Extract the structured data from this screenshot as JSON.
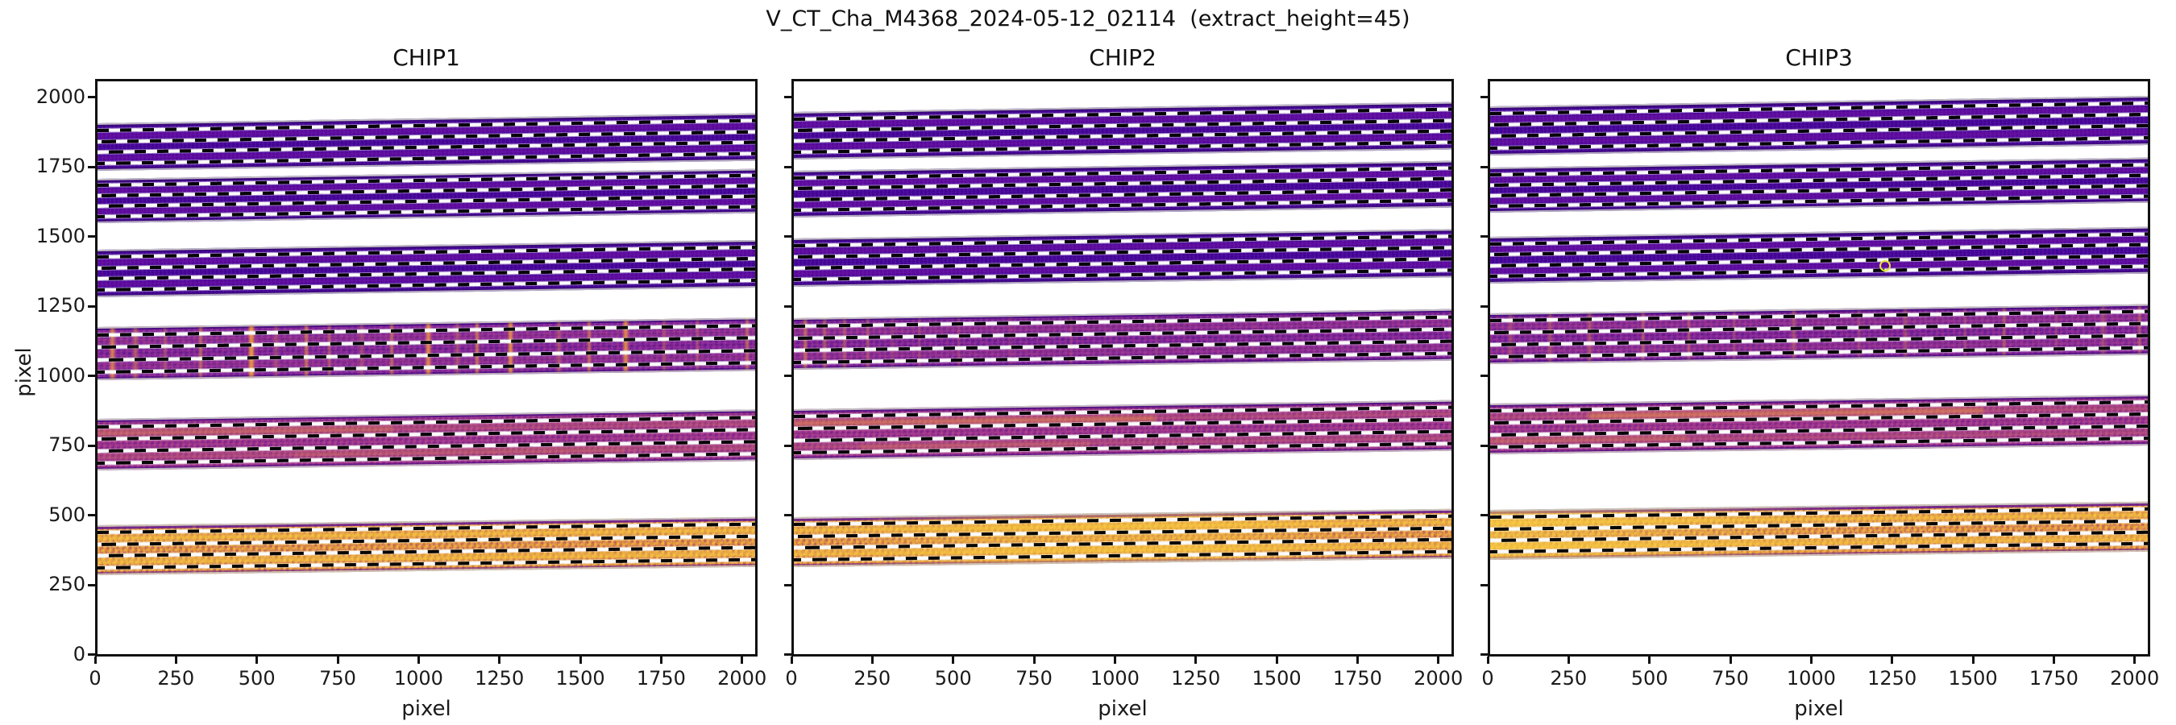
{
  "figure": {
    "suptitle": "V_CT_Cha_M4368_2024-05-12_02114  (extract_height=45)",
    "extract_height": 45
  },
  "axes": {
    "xlabel": "pixel",
    "ylabel": "pixel",
    "x_ticks": [
      0,
      250,
      500,
      750,
      1000,
      1250,
      1500,
      1750,
      2000
    ],
    "y_ticks": [
      0,
      250,
      500,
      750,
      1000,
      1250,
      1500,
      1750,
      2000
    ],
    "xlim": [
      0,
      2048
    ],
    "ylim": [
      -7,
      2065
    ]
  },
  "colors": {
    "dark_base": "#43069e",
    "mid_base": "#74219d",
    "magenta_base": "#902d93",
    "orange_base": "#dd8634",
    "orange_bright": "#f9c62f",
    "streak_orange": "#fca636",
    "dash_black": "#060606",
    "dash_white": "#fafafa",
    "marker_yellow": "#e8e337",
    "spine": "#111111",
    "edge_gray": "#c6c6c6"
  },
  "chart_data": [
    {
      "type": "heatmap",
      "title": "CHIP1",
      "xlabel": "pixel",
      "ylabel": "pixel",
      "xlim": [
        0,
        2048
      ],
      "x_ticks": [
        0,
        250,
        500,
        750,
        1000,
        1250,
        1500,
        1750,
        2000
      ],
      "y_ticks": [
        0,
        250,
        500,
        750,
        1000,
        1250,
        1500,
        1750,
        2000
      ],
      "orders": [
        {
          "y_bottom_left": 1745,
          "band_height": 170,
          "rise": 36,
          "palette": "dark",
          "highlight": "none",
          "vstreaks": [],
          "hstreaks": []
        },
        {
          "y_bottom_left": 1555,
          "band_height": 160,
          "rise": 36,
          "palette": "dark",
          "highlight": "none",
          "vstreaks": [],
          "hstreaks": []
        },
        {
          "y_bottom_left": 1292,
          "band_height": 170,
          "rise": 35,
          "palette": "dark",
          "highlight": "none",
          "vstreaks": [],
          "hstreaks": []
        },
        {
          "y_bottom_left": 995,
          "band_height": 190,
          "rise": 34,
          "palette": "mid",
          "highlight": "none",
          "vstreaks": [
            [
              0.02,
              5,
              0.7
            ],
            [
              0.055,
              4,
              0.5
            ],
            [
              0.1,
              3,
              0.4
            ],
            [
              0.155,
              4,
              0.5
            ],
            [
              0.23,
              6,
              0.85
            ],
            [
              0.27,
              3,
              0.4
            ],
            [
              0.315,
              4,
              0.6
            ],
            [
              0.35,
              3,
              0.45
            ],
            [
              0.4,
              3,
              0.4
            ],
            [
              0.445,
              4,
              0.5
            ],
            [
              0.5,
              5,
              0.8
            ],
            [
              0.545,
              3,
              0.45
            ],
            [
              0.575,
              4,
              0.6
            ],
            [
              0.625,
              5,
              0.8
            ],
            [
              0.7,
              3,
              0.5
            ],
            [
              0.745,
              4,
              0.55
            ],
            [
              0.8,
              5,
              0.8
            ],
            [
              0.86,
              3,
              0.4
            ],
            [
              0.91,
              3,
              0.35
            ],
            [
              0.985,
              4,
              0.5
            ]
          ],
          "hstreaks": []
        },
        {
          "y_bottom_left": 668,
          "band_height": 185,
          "rise": 34,
          "palette": "magenta",
          "highlight": "none",
          "vstreaks": [],
          "hstreaks": [
            [
              0.0,
              0.45,
              0.2,
              0.3
            ],
            [
              0.3,
              0.5,
              0.7,
              0.18
            ]
          ]
        },
        {
          "y_bottom_left": 293,
          "band_height": 180,
          "rise": 30,
          "palette": "orange",
          "highlight": "none",
          "vstreaks": [
            [
              0.145,
              3,
              0.35
            ],
            [
              0.46,
              3,
              0.3
            ],
            [
              0.93,
              3,
              0.28
            ]
          ],
          "hstreaks": []
        }
      ],
      "markers": []
    },
    {
      "type": "heatmap",
      "title": "CHIP2",
      "xlabel": "pixel",
      "ylabel": "pixel",
      "xlim": [
        0,
        2048
      ],
      "x_ticks": [
        0,
        250,
        500,
        750,
        1000,
        1250,
        1500,
        1750,
        2000
      ],
      "y_ticks": [
        0,
        250,
        500,
        750,
        1000,
        1250,
        1500,
        1750,
        2000
      ],
      "orders": [
        {
          "y_bottom_left": 1785,
          "band_height": 170,
          "rise": 36,
          "palette": "dark",
          "highlight": "none",
          "vstreaks": [],
          "hstreaks": []
        },
        {
          "y_bottom_left": 1575,
          "band_height": 168,
          "rise": 36,
          "palette": "dark",
          "highlight": "none",
          "vstreaks": [],
          "hstreaks": []
        },
        {
          "y_bottom_left": 1330,
          "band_height": 172,
          "rise": 34,
          "palette": "dark",
          "highlight": "none",
          "vstreaks": [],
          "hstreaks": []
        },
        {
          "y_bottom_left": 1030,
          "band_height": 185,
          "rise": 33,
          "palette": "mid",
          "highlight": "none",
          "vstreaks": [
            [
              0.015,
              4,
              0.55
            ],
            [
              0.045,
              3,
              0.5
            ],
            [
              0.075,
              3,
              0.45
            ],
            [
              0.11,
              3,
              0.4
            ],
            [
              0.15,
              2,
              0.3
            ],
            [
              0.19,
              2,
              0.3
            ],
            [
              0.25,
              2,
              0.25
            ],
            [
              0.33,
              2,
              0.2
            ],
            [
              0.42,
              2,
              0.2
            ],
            [
              0.55,
              2,
              0.15
            ],
            [
              0.7,
              2,
              0.15
            ]
          ],
          "hstreaks": []
        },
        {
          "y_bottom_left": 705,
          "band_height": 183,
          "rise": 33,
          "palette": "magenta",
          "highlight": "none",
          "vstreaks": [],
          "hstreaks": [
            [
              0.0,
              0.55,
              0.2,
              0.45
            ],
            [
              0.1,
              0.35,
              0.72,
              0.22
            ]
          ]
        },
        {
          "y_bottom_left": 323,
          "band_height": 180,
          "rise": 30,
          "palette": "orange",
          "highlight": "center",
          "vstreaks": [
            [
              0.13,
              3,
              0.3
            ],
            [
              0.44,
              3,
              0.3
            ],
            [
              0.67,
              2,
              0.25
            ]
          ],
          "hstreaks": []
        }
      ],
      "markers": []
    },
    {
      "type": "heatmap",
      "title": "CHIP3",
      "xlabel": "pixel",
      "ylabel": "pixel",
      "xlim": [
        0,
        2048
      ],
      "x_ticks": [
        0,
        250,
        500,
        750,
        1000,
        1250,
        1500,
        1750,
        2000
      ],
      "y_ticks": [
        0,
        250,
        500,
        750,
        1000,
        1250,
        1500,
        1750,
        2000
      ],
      "orders": [
        {
          "y_bottom_left": 1800,
          "band_height": 175,
          "rise": 38,
          "palette": "dark",
          "highlight": "none",
          "vstreaks": [],
          "hstreaks": []
        },
        {
          "y_bottom_left": 1595,
          "band_height": 162,
          "rise": 36,
          "palette": "dark",
          "highlight": "none",
          "vstreaks": [],
          "hstreaks": []
        },
        {
          "y_bottom_left": 1338,
          "band_height": 168,
          "rise": 36,
          "palette": "dark",
          "highlight": "none",
          "vstreaks": [],
          "hstreaks": []
        },
        {
          "y_bottom_left": 1052,
          "band_height": 182,
          "rise": 33,
          "palette": "mid",
          "highlight": "none",
          "vstreaks": [
            [
              0.03,
              3,
              0.4
            ],
            [
              0.09,
              3,
              0.45
            ],
            [
              0.15,
              3,
              0.5
            ],
            [
              0.23,
              3,
              0.45
            ],
            [
              0.3,
              3,
              0.4
            ],
            [
              0.37,
              2,
              0.35
            ],
            [
              0.46,
              3,
              0.45
            ],
            [
              0.56,
              2,
              0.35
            ],
            [
              0.63,
              3,
              0.4
            ],
            [
              0.72,
              2,
              0.35
            ],
            [
              0.78,
              3,
              0.45
            ],
            [
              0.86,
              2,
              0.3
            ],
            [
              0.93,
              3,
              0.4
            ],
            [
              0.985,
              3,
              0.45
            ]
          ],
          "hstreaks": []
        },
        {
          "y_bottom_left": 728,
          "band_height": 182,
          "rise": 32,
          "palette": "magenta",
          "highlight": "none",
          "vstreaks": [],
          "hstreaks": [
            [
              0.15,
              0.6,
              0.18,
              0.5
            ],
            [
              0.0,
              0.3,
              0.68,
              0.28
            ]
          ]
        },
        {
          "y_bottom_left": 350,
          "band_height": 178,
          "rise": 30,
          "palette": "orange",
          "highlight": "left",
          "vstreaks": [
            [
              0.57,
              3,
              0.3
            ]
          ],
          "hstreaks": []
        }
      ],
      "markers": [
        {
          "x": 1215,
          "y": 1410,
          "shape": "circle-outline",
          "color": "#e8e337"
        }
      ]
    }
  ]
}
